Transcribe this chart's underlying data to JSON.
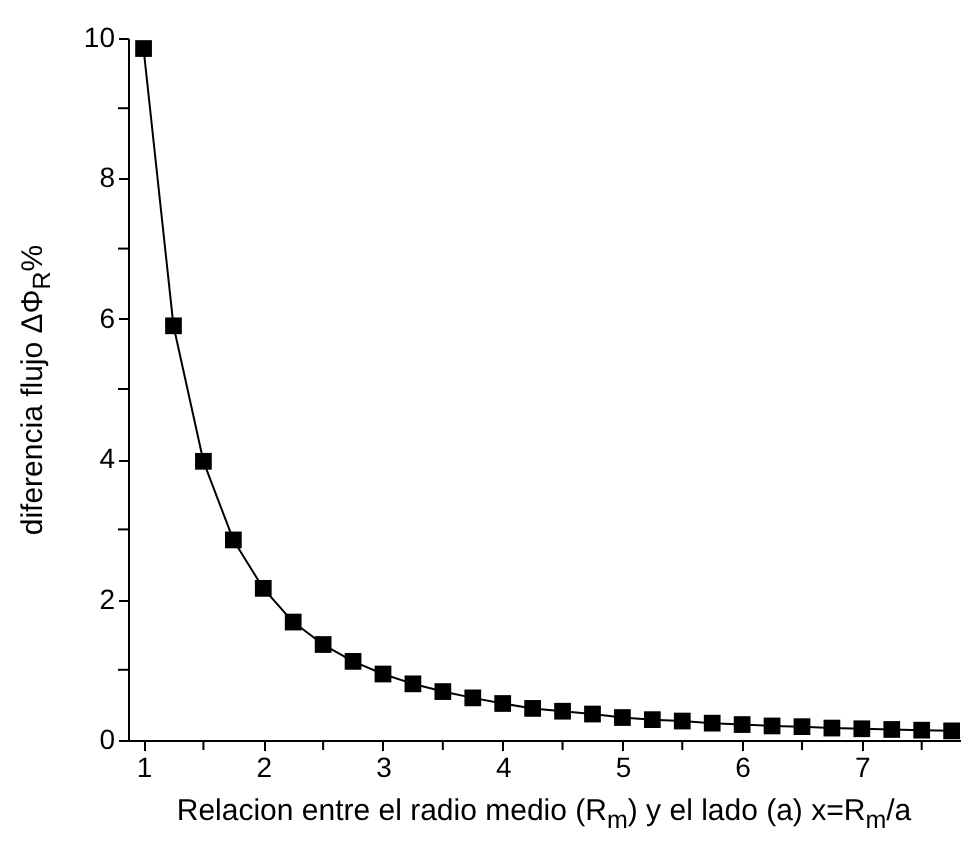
{
  "chart_data": {
    "type": "line",
    "xlabel": "Relacion entre el radio medio (R$_{m}$) y el lado (a) x=R$_{m}$/a",
    "ylabel": "diferencia flujo ΔΦ$_{R}$%",
    "x": [
      1,
      1.25,
      1.5,
      1.75,
      2,
      2.25,
      2.5,
      2.75,
      3,
      3.25,
      3.5,
      3.75,
      4,
      4.25,
      4.5,
      4.75,
      5,
      5.25,
      5.5,
      5.75,
      6,
      6.25,
      6.5,
      6.75,
      7,
      7.25,
      7.5,
      7.75
    ],
    "series": [
      {
        "color": "#000000",
        "values": [
          9.85,
          5.9,
          3.97,
          2.85,
          2.16,
          1.68,
          1.36,
          1.12,
          0.94,
          0.8,
          0.69,
          0.6,
          0.52,
          0.45,
          0.41,
          0.37,
          0.32,
          0.29,
          0.27,
          0.24,
          0.22,
          0.2,
          0.19,
          0.17,
          0.16,
          0.15,
          0.14,
          0.13
        ]
      }
    ],
    "xlim": [
      0.87,
      7.82
    ],
    "ylim": [
      0,
      10
    ],
    "xticks": [
      1,
      {
        "value": 1.5,
        "label": null
      },
      2,
      {
        "value": 2.5,
        "label": null
      },
      3,
      {
        "value": 3.5,
        "label": null
      },
      4,
      {
        "value": 4.5,
        "label": null
      },
      5,
      {
        "value": 5.5,
        "label": null
      },
      6,
      {
        "value": 6.5,
        "label": null
      },
      7,
      {
        "value": 7.5,
        "label": null
      }
    ],
    "yticks": [
      0,
      {
        "value": 1,
        "label": null
      },
      2,
      {
        "value": 3,
        "label": null
      },
      4,
      {
        "value": 5,
        "label": null
      },
      6,
      {
        "value": 7,
        "label": null
      },
      8,
      {
        "value": 9,
        "label": null
      },
      10
    ],
    "grid": false,
    "marker": "square",
    "line_style": "solid"
  }
}
